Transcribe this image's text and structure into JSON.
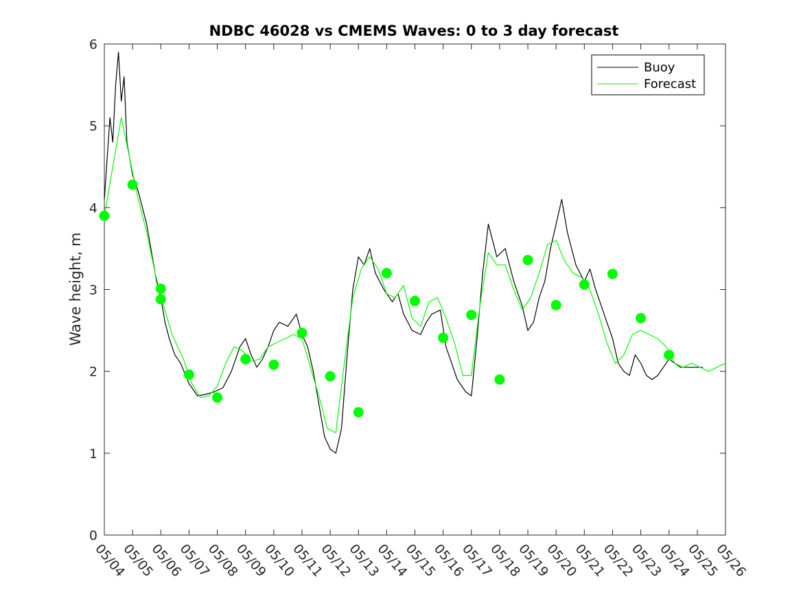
{
  "chart_data": {
    "type": "line",
    "title": "NDBC 46028 vs CMEMS Waves: 0 to 3 day forecast",
    "xlabel": "",
    "ylabel": "Wave height, m",
    "ylim": [
      0,
      6
    ],
    "yticks": [
      "0",
      "1",
      "2",
      "3",
      "4",
      "5",
      "6"
    ],
    "xlim": [
      0,
      22
    ],
    "xtick_labels": [
      "05/04",
      "05/05",
      "05/06",
      "05/07",
      "05/08",
      "05/09",
      "05/10",
      "05/11",
      "05/12",
      "05/13",
      "05/14",
      "05/15",
      "05/16",
      "05/17",
      "05/18",
      "05/19",
      "05/20",
      "05/21",
      "05/22",
      "05/23",
      "05/24",
      "05/25",
      "05/26"
    ],
    "x_units": "days since 05/04",
    "legend": {
      "position": "top-right",
      "entries": [
        {
          "label": "Buoy",
          "color": "#000000"
        },
        {
          "label": "Forecast",
          "color": "#00ff00"
        }
      ]
    },
    "colors": {
      "buoy": "#000000",
      "forecast": "#00ff00"
    },
    "series": [
      {
        "name": "Buoy",
        "x": [
          0.0,
          0.1,
          0.2,
          0.3,
          0.4,
          0.5,
          0.6,
          0.7,
          0.8,
          1.0,
          1.2,
          1.5,
          1.7,
          1.85,
          2.0,
          2.15,
          2.3,
          2.5,
          2.7,
          3.0,
          3.3,
          3.6,
          3.9,
          4.2,
          4.5,
          4.8,
          5.0,
          5.2,
          5.4,
          5.6,
          5.8,
          6.0,
          6.2,
          6.5,
          6.8,
          7.0,
          7.2,
          7.4,
          7.6,
          7.8,
          8.0,
          8.2,
          8.4,
          8.6,
          8.8,
          9.0,
          9.2,
          9.4,
          9.6,
          9.9,
          10.2,
          10.4,
          10.6,
          10.9,
          11.2,
          11.4,
          11.6,
          11.9,
          12.1,
          12.3,
          12.5,
          12.8,
          13.0,
          13.2,
          13.4,
          13.6,
          13.9,
          14.2,
          14.5,
          14.8,
          15.0,
          15.2,
          15.4,
          15.6,
          15.8,
          16.0,
          16.2,
          16.4,
          16.7,
          17.0,
          17.2,
          17.4,
          17.6,
          17.8,
          18.0,
          18.2,
          18.4,
          18.6,
          18.8,
          19.0,
          19.2,
          19.4,
          19.6,
          19.8,
          20.0,
          20.2,
          20.4,
          20.6,
          20.8,
          21.0,
          21.2
        ],
        "values": [
          4.1,
          4.6,
          5.1,
          4.8,
          5.5,
          5.9,
          5.3,
          5.6,
          4.8,
          4.4,
          4.2,
          3.8,
          3.4,
          3.1,
          2.9,
          2.6,
          2.4,
          2.2,
          2.1,
          1.85,
          1.7,
          1.72,
          1.75,
          1.8,
          2.0,
          2.3,
          2.4,
          2.2,
          2.05,
          2.15,
          2.3,
          2.5,
          2.6,
          2.55,
          2.7,
          2.45,
          2.3,
          2.0,
          1.6,
          1.2,
          1.05,
          1.0,
          1.3,
          2.2,
          3.0,
          3.4,
          3.3,
          3.5,
          3.2,
          3.0,
          2.85,
          2.95,
          2.7,
          2.5,
          2.45,
          2.6,
          2.7,
          2.75,
          2.3,
          2.1,
          1.9,
          1.75,
          1.7,
          2.4,
          3.2,
          3.8,
          3.4,
          3.5,
          3.1,
          2.8,
          2.5,
          2.6,
          2.9,
          3.1,
          3.5,
          3.8,
          4.1,
          3.7,
          3.3,
          3.1,
          3.25,
          3.0,
          2.8,
          2.6,
          2.4,
          2.1,
          2.0,
          1.95,
          2.2,
          2.1,
          1.95,
          1.9,
          1.95,
          2.05,
          2.15,
          2.1,
          2.05,
          2.05,
          2.05,
          2.05,
          2.05
        ]
      },
      {
        "name": "Forecast",
        "x": [
          0.0,
          0.3,
          0.6,
          0.9,
          1.2,
          1.5,
          1.8,
          2.1,
          2.4,
          2.8,
          3.1,
          3.4,
          3.7,
          4.0,
          4.3,
          4.6,
          4.9,
          5.2,
          5.5,
          5.8,
          6.1,
          6.4,
          6.7,
          7.0,
          7.3,
          7.6,
          7.9,
          8.2,
          8.5,
          8.8,
          9.1,
          9.4,
          9.7,
          10.0,
          10.3,
          10.6,
          10.9,
          11.2,
          11.5,
          11.8,
          12.1,
          12.4,
          12.7,
          13.0,
          13.3,
          13.6,
          13.9,
          14.2,
          14.5,
          14.8,
          15.1,
          15.4,
          15.7,
          16.0,
          16.3,
          16.6,
          16.9,
          17.2,
          17.5,
          17.8,
          18.1,
          18.4,
          18.7,
          19.0,
          19.3,
          19.6,
          19.9,
          20.2,
          20.5,
          20.8,
          21.1,
          21.4,
          21.7,
          22.0
        ],
        "values": [
          3.9,
          4.5,
          5.1,
          4.6,
          4.1,
          3.7,
          3.2,
          2.8,
          2.45,
          2.15,
          1.85,
          1.68,
          1.7,
          1.82,
          2.1,
          2.3,
          2.25,
          2.12,
          2.15,
          2.3,
          2.35,
          2.4,
          2.45,
          2.4,
          2.05,
          1.7,
          1.3,
          1.25,
          2.1,
          2.9,
          3.25,
          3.4,
          3.25,
          2.95,
          2.9,
          3.05,
          2.65,
          2.55,
          2.85,
          2.9,
          2.65,
          2.35,
          1.95,
          1.95,
          2.8,
          3.45,
          3.3,
          3.3,
          3.0,
          2.75,
          2.9,
          3.2,
          3.55,
          3.6,
          3.35,
          3.2,
          3.15,
          3.0,
          2.7,
          2.35,
          2.1,
          2.2,
          2.45,
          2.5,
          2.45,
          2.4,
          2.3,
          2.1,
          2.05,
          2.1,
          2.05,
          2.0,
          2.05,
          2.1
        ]
      }
    ],
    "markers": {
      "name": "Forecast",
      "x": [
        0,
        1,
        2,
        2,
        3,
        4,
        5,
        6,
        7,
        8,
        9,
        10,
        11,
        12,
        13,
        14,
        15,
        16,
        17,
        18,
        19,
        20
      ],
      "values": [
        3.9,
        4.28,
        3.01,
        2.88,
        1.96,
        1.68,
        2.15,
        2.08,
        2.47,
        1.94,
        1.5,
        3.2,
        2.86,
        2.41,
        2.69,
        1.9,
        3.36,
        2.81,
        3.06,
        3.19,
        2.65,
        2.2
      ]
    }
  }
}
